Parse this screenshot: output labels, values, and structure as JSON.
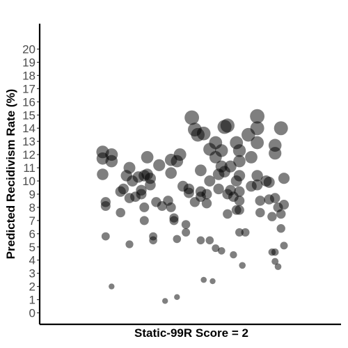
{
  "chart_data": {
    "type": "scatter",
    "title": "",
    "xlabel": "Static-99R Score = 2",
    "ylabel": "Predicted Recidivism Rate (%)",
    "xlim": [
      0,
      100
    ],
    "ylim": [
      -0.8,
      21
    ],
    "yticks": [
      0,
      1,
      2,
      3,
      4,
      5,
      6,
      7,
      8,
      9,
      10,
      11,
      12,
      13,
      14,
      15,
      16,
      17,
      18,
      19,
      20
    ],
    "grid": false,
    "legend": "none",
    "point_color": "#000000",
    "point_opacity": 0.5,
    "x_axis_ticks_shown": false,
    "size_encoding": "marker size increases with predicted rate",
    "points": [
      {
        "x": 2,
        "y": 12.2
      },
      {
        "x": 2,
        "y": 11.7
      },
      {
        "x": 2,
        "y": 10.5
      },
      {
        "x": 3,
        "y": 8.4
      },
      {
        "x": 3,
        "y": 8.1
      },
      {
        "x": 3,
        "y": 5.8
      },
      {
        "x": 5,
        "y": 12.0
      },
      {
        "x": 5,
        "y": 11.5
      },
      {
        "x": 5,
        "y": 2.0
      },
      {
        "x": 8,
        "y": 9.2
      },
      {
        "x": 8,
        "y": 7.6
      },
      {
        "x": 9,
        "y": 9.4
      },
      {
        "x": 10,
        "y": 10.4
      },
      {
        "x": 11,
        "y": 11.0
      },
      {
        "x": 11,
        "y": 8.7
      },
      {
        "x": 11,
        "y": 5.2
      },
      {
        "x": 12,
        "y": 10.0
      },
      {
        "x": 13,
        "y": 8.8
      },
      {
        "x": 14,
        "y": 10.3
      },
      {
        "x": 15,
        "y": 9.3
      },
      {
        "x": 15,
        "y": 9.0
      },
      {
        "x": 16,
        "y": 10.4
      },
      {
        "x": 16,
        "y": 8.0
      },
      {
        "x": 16,
        "y": 7.0
      },
      {
        "x": 17,
        "y": 11.8
      },
      {
        "x": 17,
        "y": 10.5
      },
      {
        "x": 18,
        "y": 10.2
      },
      {
        "x": 18,
        "y": 9.7
      },
      {
        "x": 19,
        "y": 5.8
      },
      {
        "x": 19,
        "y": 5.5
      },
      {
        "x": 20,
        "y": 8.4
      },
      {
        "x": 21,
        "y": 11.2
      },
      {
        "x": 22,
        "y": 8.1
      },
      {
        "x": 23,
        "y": 0.9
      },
      {
        "x": 24,
        "y": 8.5
      },
      {
        "x": 25,
        "y": 11.6
      },
      {
        "x": 25,
        "y": 10.6
      },
      {
        "x": 25,
        "y": 8.0
      },
      {
        "x": 26,
        "y": 7.2
      },
      {
        "x": 26,
        "y": 7.0
      },
      {
        "x": 27,
        "y": 1.2
      },
      {
        "x": 27,
        "y": 5.6
      },
      {
        "x": 27,
        "y": 11.5
      },
      {
        "x": 28,
        "y": 12.0
      },
      {
        "x": 29,
        "y": 9.6
      },
      {
        "x": 30,
        "y": 6.7
      },
      {
        "x": 30,
        "y": 6.1
      },
      {
        "x": 31,
        "y": 9.4
      },
      {
        "x": 31,
        "y": 9.1
      },
      {
        "x": 32,
        "y": 14.8
      },
      {
        "x": 33,
        "y": 13.9
      },
      {
        "x": 33,
        "y": 8.4
      },
      {
        "x": 34,
        "y": 13.5
      },
      {
        "x": 35,
        "y": 10.8
      },
      {
        "x": 35,
        "y": 9.2
      },
      {
        "x": 35,
        "y": 8.8
      },
      {
        "x": 35,
        "y": 5.5
      },
      {
        "x": 36,
        "y": 13.6
      },
      {
        "x": 36,
        "y": 2.5
      },
      {
        "x": 37,
        "y": 8.3
      },
      {
        "x": 37,
        "y": 9.0
      },
      {
        "x": 38,
        "y": 10.0
      },
      {
        "x": 38,
        "y": 12.4
      },
      {
        "x": 38,
        "y": 5.5
      },
      {
        "x": 39,
        "y": 2.4
      },
      {
        "x": 40,
        "y": 11.8
      },
      {
        "x": 40,
        "y": 12.9
      },
      {
        "x": 40,
        "y": 4.9
      },
      {
        "x": 41,
        "y": 10.5
      },
      {
        "x": 41,
        "y": 9.4
      },
      {
        "x": 42,
        "y": 12.3
      },
      {
        "x": 42,
        "y": 11.1
      },
      {
        "x": 42,
        "y": 4.7
      },
      {
        "x": 43,
        "y": 14.1
      },
      {
        "x": 43,
        "y": 10.7
      },
      {
        "x": 44,
        "y": 14.2
      },
      {
        "x": 44,
        "y": 9.0
      },
      {
        "x": 44,
        "y": 7.5
      },
      {
        "x": 45,
        "y": 11.1
      },
      {
        "x": 45,
        "y": 9.3
      },
      {
        "x": 46,
        "y": 8.8
      },
      {
        "x": 46,
        "y": 4.4
      },
      {
        "x": 47,
        "y": 12.9
      },
      {
        "x": 47,
        "y": 10.0
      },
      {
        "x": 47,
        "y": 7.8
      },
      {
        "x": 48,
        "y": 12.3
      },
      {
        "x": 48,
        "y": 11.5
      },
      {
        "x": 48,
        "y": 10.4
      },
      {
        "x": 48,
        "y": 9.2
      },
      {
        "x": 48,
        "y": 8.5
      },
      {
        "x": 48,
        "y": 7.8
      },
      {
        "x": 48,
        "y": 6.1
      },
      {
        "x": 49,
        "y": 3.6
      },
      {
        "x": 50,
        "y": 6.1
      },
      {
        "x": 51,
        "y": 13.5
      },
      {
        "x": 52,
        "y": 11.8
      },
      {
        "x": 52,
        "y": 9.6
      },
      {
        "x": 54,
        "y": 14.9
      },
      {
        "x": 54,
        "y": 14.0
      },
      {
        "x": 54,
        "y": 12.9
      },
      {
        "x": 54,
        "y": 10.4
      },
      {
        "x": 54,
        "y": 9.7
      },
      {
        "x": 55,
        "y": 8.5
      },
      {
        "x": 55,
        "y": 7.6
      },
      {
        "x": 57,
        "y": 10.0
      },
      {
        "x": 58,
        "y": 9.9
      },
      {
        "x": 58,
        "y": 8.6
      },
      {
        "x": 59,
        "y": 7.3
      },
      {
        "x": 59,
        "y": 4.6
      },
      {
        "x": 60,
        "y": 12.7
      },
      {
        "x": 60,
        "y": 12.1
      },
      {
        "x": 60,
        "y": 8.7
      },
      {
        "x": 60,
        "y": 4.6
      },
      {
        "x": 60,
        "y": 3.9
      },
      {
        "x": 61,
        "y": 8.0
      },
      {
        "x": 61,
        "y": 3.5
      },
      {
        "x": 62,
        "y": 14.0
      },
      {
        "x": 62,
        "y": 6.4
      },
      {
        "x": 62,
        "y": 7.5
      },
      {
        "x": 63,
        "y": 10.2
      },
      {
        "x": 63,
        "y": 8.2
      },
      {
        "x": 63,
        "y": 5.1
      }
    ]
  }
}
